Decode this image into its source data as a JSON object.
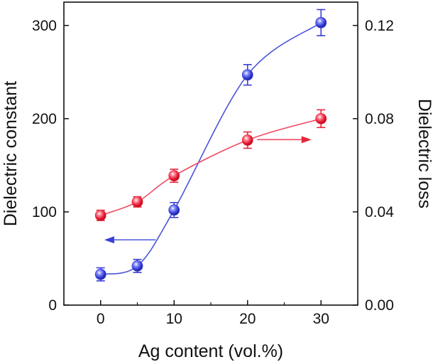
{
  "chart_data": {
    "type": "scatter",
    "xlabel": "Ag content (vol.%)",
    "ylabel_left": "Dielectric constant",
    "ylabel_right": "Dielectric loss",
    "x_tick_labels": [
      "0",
      "10",
      "20",
      "30"
    ],
    "y_left_tick_labels": [
      "0",
      "100",
      "200",
      "300"
    ],
    "y_right_tick_labels": [
      "0.00",
      "0.04",
      "0.08",
      "0.12"
    ],
    "xlim": [
      -5,
      35
    ],
    "ylim_left": [
      0,
      325
    ],
    "ylim_right": [
      0,
      0.13
    ],
    "x_axis_positions": [
      0,
      5,
      10,
      20,
      30
    ],
    "x_ticks": [
      0,
      10,
      20,
      30
    ],
    "y_left_ticks": [
      0,
      100,
      200,
      300
    ],
    "y_right_ticks": [
      0,
      0.04,
      0.08,
      0.12
    ],
    "grid": false,
    "series": [
      {
        "axis": "left",
        "color": "#3a3fd6",
        "line_color": "#4a55d8",
        "x": [
          0,
          5,
          10,
          20,
          30
        ],
        "y": [
          33,
          42,
          102,
          247,
          303
        ],
        "err": [
          7,
          7,
          8,
          11,
          14
        ],
        "arrow": "left"
      },
      {
        "axis": "right",
        "color": "#e8243a",
        "line_color": "#f04a60",
        "x": [
          0,
          5,
          10,
          20,
          30
        ],
        "y": [
          0.0385,
          0.0443,
          0.0555,
          0.0708,
          0.08
        ],
        "err": [
          0.0022,
          0.0022,
          0.0028,
          0.0035,
          0.0038
        ],
        "arrow": "right"
      }
    ]
  }
}
